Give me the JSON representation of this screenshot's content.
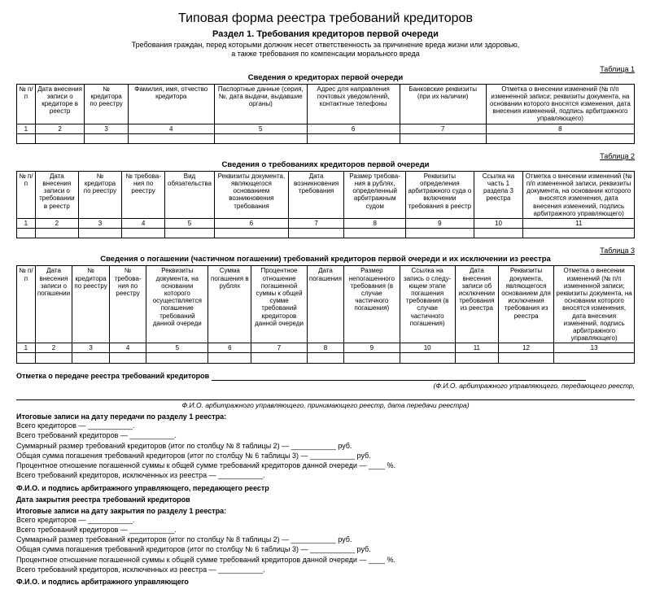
{
  "title": "Типовая форма реестра требований кредиторов",
  "section_heading": "Раздел 1. Требования кредиторов первой очереди",
  "section_desc1": "Требования граждан, перед которыми должник несет ответственность за причинение вреда жизни или здоровью,",
  "section_desc2": "а также требования по компенсации морального вреда",
  "table1": {
    "label": "Таблица 1",
    "title": "Сведения о кредиторах первой очереди",
    "headers": [
      "№ п/п",
      "Дата внесения записи о кредиторе в реестр",
      "№ кредитора по реестру",
      "Фамилия, имя, отчество кредитора",
      "Паспортные данные (серия, №, дата выдачи, выдавшие органы)",
      "Адрес для направления почтовых уведомлений, контактные телефоны",
      "Банковские реквизиты (при их наличии)",
      "Отметка о внесении изменений (№ п/п измененной записи; реквизиты документа, на основании которого вносятся изменения, дата внесения изменений, подпись арбитражного управляющего)"
    ],
    "nums": [
      "1",
      "2",
      "3",
      "4",
      "5",
      "6",
      "7",
      "8"
    ],
    "widths": [
      "3%",
      "8%",
      "7%",
      "14%",
      "15%",
      "15%",
      "14%",
      "24%"
    ]
  },
  "table2": {
    "label": "Таблица 2",
    "title": "Сведения о требованиях кредиторов первой очереди",
    "headers": [
      "№ п/п",
      "Дата внесения записи о требо­вании в реестр",
      "№ кредитора по реестру",
      "№ требова­ния по реестру",
      "Вид обязатель­ства",
      "Реквизиты доку­мента, являюще­гося основанием возникновения требования",
      "Дата возникновения требования",
      "Размер требова­ния в рублях, определенный арбитражным судом",
      "Реквизиты определения арбитражного суда о включении требования в реестр",
      "Ссылка на часть 1 раздела 3 реестра",
      "Отметка о внесении изменений (№ п/п измененной записи, реквизиты документа, на основании которого вносятся изменения, дата внесения изменений, подпись арбитражного управляющего)"
    ],
    "nums": [
      "1",
      "2",
      "3",
      "4",
      "5",
      "6",
      "7",
      "8",
      "9",
      "10",
      "11"
    ],
    "widths": [
      "3%",
      "7%",
      "7%",
      "7%",
      "8%",
      "12%",
      "9%",
      "10%",
      "11%",
      "8%",
      "18%"
    ]
  },
  "table3": {
    "label": "Таблица 3",
    "title": "Сведения о погашении (частичном погашении) требований кредиторов первой очереди и их исключении из реестра",
    "headers": [
      "№ п/п",
      "Дата внесения записи о погаше­нии",
      "№ кредитора по реестру",
      "№ требова­ния по реестру",
      "Реквизиты документа, на основании которого осуществляет­ся погашение требований данной очереди",
      "Сумма погашения в рублях",
      "Процентное отношение погашенной суммы к общей сумме требований кредиторов данной очереди",
      "Дата погаше­ния",
      "Размер непогашенного требования (в случае частичного погашения)",
      "Ссылка на запись о следу­ющем этапе погашения требования (в случае частичного погашения)",
      "Дата внесения записи об исклю­чении требования из реестра",
      "Реквизиты документа, являющегося основанием для исключения требования из реестра",
      "Отметка о внесении изме­нений (№ п/п измененной записи; реквизиты документа, на основании которого вносятся изменения, дата внесения изменений, подпись арби­тражного управляющего)"
    ],
    "nums": [
      "1",
      "2",
      "3",
      "4",
      "5",
      "6",
      "7",
      "8",
      "9",
      "10",
      "11",
      "12",
      "13"
    ],
    "widths": [
      "3%",
      "6%",
      "6%",
      "6%",
      "10%",
      "7%",
      "9%",
      "6%",
      "9%",
      "9%",
      "7%",
      "9%",
      "13%"
    ]
  },
  "transfer_note": "Отметка о передаче реестра требований кредиторов",
  "italic1": "(Ф.И.О. арбитражного управляющего, передающего реестр,",
  "italic2": "Ф.И.О. арбитражного управляющего, принимающего реестр, дата передачи реестра)",
  "totals1_title": "Итоговые записи на дату передачи по разделу 1 реестра:",
  "lines1": {
    "a": "Всего кредиторов — ___________.",
    "b": "Всего требований кредиторов — ___________.",
    "c": "Суммарный размер требований кредиторов (итог по столбцу № 8 таблицы 2) — ___________ руб.",
    "d": "Общая сумма погашения требований кредиторов (итог по столбцу № 6 таблицы 3) — ___________ руб.",
    "e": "Процентное отношение погашенной суммы к общей сумме требований кредиторов данной очереди — ____ %.",
    "f": "Всего требований кредиторов, исключенных из реестра — ___________."
  },
  "fio1": "Ф.И.О. и подпись арбитражного управляющего, передающего реестр",
  "close_date": "Дата закрытия реестра требований кредиторов",
  "totals2_title": "Итоговые записи на дату закрытия по разделу 1 реестра:",
  "lines2": {
    "a": "Всего кредиторов — ___________.",
    "b": "Всего требований кредиторов — ___________.",
    "c": "Суммарный размер требований кредиторов (итог по столбцу № 8 таблицы 2) — ___________ руб.",
    "d": "Общая сумма погашения требований кредиторов (итог по столбцу № 6 таблицы 3) — ___________ руб.",
    "e": "Процентное отношение погашенной суммы к общей сумме требований кредиторов данной очереди — ____ %.",
    "f": "Всего требований кредиторов, исключенных из реестра — ___________."
  },
  "fio2": "Ф.И.О. и подпись арбитражного управляющего"
}
